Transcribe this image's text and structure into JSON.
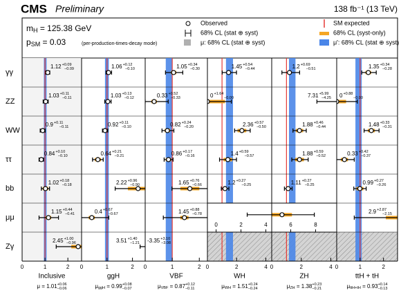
{
  "chart_data": {
    "type": "coefficient-grid",
    "experiment": "CMS",
    "status": "Preliminary",
    "lumi": "138 fb⁻¹ (13 TeV)",
    "mass": {
      "symbol": "m",
      "sub": "H",
      "text": " = 125.38 GeV"
    },
    "psm": {
      "symbol": "p",
      "sub": "SM",
      "text": " = 0.03"
    },
    "psm_note": "(per-production-times-decay mode)",
    "legend": {
      "observed": "Observed",
      "sm": "SM expected",
      "total": "68% CL (stat ⊕ syst)",
      "syst": "68% CL (syst-only)",
      "mu_prime": "μ: 68% CL (stat ⊕ syst)",
      "mu": "μ': 68% CL (stat ⊕ syst)"
    },
    "colors": {
      "point": "#000000",
      "syst": "#f5a623",
      "band": "#4a86e8",
      "sm": "#e53935",
      "mu_prime": "#b0b0b0",
      "shade": "#f3f3f3"
    },
    "eq_sign": " = ",
    "sm": 1,
    "rows": [
      "γγ",
      "ZZ",
      "WW",
      "ττ",
      "bb",
      "μμ",
      "Zγ"
    ],
    "columns": [
      {
        "name": "Inclusive",
        "mu_name": "μ",
        "shade": true,
        "xlim": [
          0,
          2.6
        ],
        "xticks": [
          0,
          1,
          2
        ],
        "mu": {
          "value": 1.01,
          "err_up": 0.06,
          "err_down": 0.06,
          "err_labels": [
            "+0.06",
            "−0.06"
          ]
        },
        "cells": [
          {
            "value": 1.12,
            "err_up": 0.09,
            "err_down": 0.09,
            "err_labels": [
              "+0.09",
              "−0.09"
            ],
            "syst": 0.05
          },
          {
            "value": 1.03,
            "err_up": 0.11,
            "err_down": 0.11,
            "err_labels": [
              "+0.11",
              "−0.11"
            ],
            "syst": 0.05
          },
          {
            "value": 0.9,
            "err_up": 0.11,
            "err_down": 0.11,
            "err_labels": [
              "+0.11",
              "−0.11"
            ],
            "syst": 0.07
          },
          {
            "value": 0.84,
            "err_up": 0.1,
            "err_down": 0.1,
            "err_labels": [
              "+0.10",
              "−0.10"
            ],
            "syst": 0.07
          },
          {
            "value": 1.02,
            "err_up": 0.18,
            "err_down": 0.18,
            "err_labels": [
              "+0.18",
              "−0.18"
            ],
            "syst": 0.12
          },
          {
            "value": 1.15,
            "err_up": 0.44,
            "err_down": 0.41,
            "err_labels": [
              "+0.44",
              "−0.41"
            ],
            "syst": 0.12
          },
          {
            "value": 2.45,
            "err_up": 1.0,
            "err_down": 0.96,
            "err_labels": [
              "+1.00",
              "−0.96"
            ],
            "syst": 0.3
          }
        ]
      },
      {
        "name": "ggH",
        "mu_name": "μ",
        "mu_sub": "ggH",
        "xlim": [
          0,
          2.5
        ],
        "xticks": [
          0,
          1,
          2
        ],
        "mu": {
          "value": 0.99,
          "err_up": 0.08,
          "err_down": 0.07,
          "err_labels": [
            "+0.08",
            "−0.07"
          ]
        },
        "cells": [
          {
            "value": 1.06,
            "err_up": 0.12,
            "err_down": 0.1,
            "err_labels": [
              "+0.12",
              "−0.10"
            ],
            "syst": 0.07
          },
          {
            "value": 1.03,
            "err_up": 0.13,
            "err_down": 0.12,
            "err_labels": [
              "+0.13",
              "−0.12"
            ],
            "syst": 0.06
          },
          {
            "value": 0.92,
            "err_up": 0.11,
            "err_down": 0.1,
            "err_labels": [
              "+0.11",
              "−0.10"
            ],
            "syst": 0.07
          },
          {
            "value": 0.64,
            "err_up": 0.21,
            "err_down": 0.21,
            "err_labels": [
              "+0.21",
              "−0.21"
            ],
            "syst": 0.12
          },
          {
            "value": 2.22,
            "err_up": 0.96,
            "err_down": 0.9,
            "err_labels": [
              "+0.96",
              "−0.90"
            ],
            "syst": 0.4
          },
          {
            "value": 0.4,
            "err_up": 0.67,
            "err_down": 0.67,
            "err_labels": [
              "+0.67",
              "−0.67"
            ],
            "syst": 0.12
          },
          {
            "value": 3.51,
            "err_up": 1.4,
            "err_down": 1.21,
            "err_labels": [
              "+1.40",
              "−1.21"
            ],
            "syst": 0.3
          }
        ]
      },
      {
        "name": "VBF",
        "mu_name": "μ",
        "mu_sub": "VBF",
        "xlim": [
          0,
          2.3
        ],
        "xticks": [
          0,
          1,
          2
        ],
        "mu": {
          "value": 0.87,
          "err_up": 0.12,
          "err_down": 0.11,
          "err_labels": [
            "+0.12",
            "−0.11"
          ]
        },
        "cells": [
          {
            "value": 1.05,
            "err_up": 0.34,
            "err_down": 0.3,
            "err_labels": [
              "+0.34",
              "−0.30"
            ],
            "syst": 0.1
          },
          {
            "value": 0.33,
            "err_up": 0.52,
            "err_down": 0.33,
            "err_labels": [
              "+0.52",
              "−0.33"
            ],
            "syst": 0.1
          },
          {
            "value": 0.82,
            "err_up": 0.24,
            "err_down": 0.2,
            "err_labels": [
              "+0.24",
              "−0.20"
            ],
            "syst": 0.1
          },
          {
            "value": 0.86,
            "err_up": 0.17,
            "err_down": 0.16,
            "err_labels": [
              "+0.17",
              "−0.16"
            ],
            "syst": 0.1
          },
          {
            "value": 1.65,
            "err_up": 0.76,
            "err_down": 0.66,
            "err_labels": [
              "+0.76",
              "−0.66"
            ],
            "syst": 0.35
          },
          {
            "value": 1.45,
            "err_up": 0.88,
            "err_down": 0.78,
            "err_labels": [
              "+0.88",
              "−0.78"
            ],
            "syst": 0.15
          },
          {
            "value": -3.35,
            "err_up": 3.1,
            "err_down": 3.08,
            "err_labels": [
              "+3.10",
              "−3.08"
            ],
            "syst": 0.6
          }
        ]
      },
      {
        "name": "WH",
        "mu_name": "μ",
        "mu_sub": "WH",
        "xlim": [
          0,
          4.4
        ],
        "xticks": [
          0,
          2,
          4
        ],
        "mu": {
          "value": 1.51,
          "err_up": 0.24,
          "err_down": 0.24,
          "err_labels": [
            "+0.24",
            "−0.24"
          ]
        },
        "cells": [
          {
            "value": 1.45,
            "err_up": 0.54,
            "err_down": 0.44,
            "err_labels": [
              "+0.54",
              "−0.44"
            ],
            "syst": 0.15
          },
          {
            "value": 0.0,
            "err_up": 1.64,
            "err_down": 0.0,
            "err_labels": [
              "+1.64",
              "−0.00"
            ],
            "syst": 1.2
          },
          {
            "value": 2.36,
            "err_up": 0.57,
            "err_down": 0.5,
            "err_labels": [
              "+0.57",
              "−0.50"
            ],
            "syst": 0.3
          },
          {
            "value": 1.4,
            "err_up": 0.59,
            "err_down": 0.57,
            "err_labels": [
              "+0.59",
              "−0.57"
            ],
            "syst": 0.3
          },
          {
            "value": 1.2,
            "err_up": 0.27,
            "err_down": 0.25,
            "err_labels": [
              "+0.27",
              "−0.25"
            ],
            "syst": 0.15
          },
          null,
          null
        ]
      },
      {
        "name": "ZH",
        "mu_name": "μ",
        "mu_sub": "ZH",
        "xlim": [
          0,
          4.4
        ],
        "xticks": [
          0,
          2,
          4
        ],
        "mu": {
          "value": 1.38,
          "err_up": 0.23,
          "err_down": 0.21,
          "err_labels": [
            "+0.23",
            "−0.21"
          ]
        },
        "cells": [
          {
            "value": 1.2,
            "err_up": 0.69,
            "err_down": 0.51,
            "err_labels": [
              "+0.69",
              "−0.51"
            ],
            "syst": 0.15
          },
          {
            "value": 7.31,
            "err_up": 5.99,
            "err_down": 4.25,
            "err_labels": [
              "+5.99",
              "−4.25"
            ],
            "syst": 1.5
          },
          {
            "value": 1.88,
            "err_up": 0.46,
            "err_down": 0.44,
            "err_labels": [
              "+0.46",
              "−0.44"
            ],
            "syst": 0.25
          },
          {
            "value": 1.88,
            "err_up": 0.59,
            "err_down": 0.52,
            "err_labels": [
              "+0.59",
              "−0.52"
            ],
            "syst": 0.3
          },
          {
            "value": 1.11,
            "err_up": 0.27,
            "err_down": 0.25,
            "err_labels": [
              "+0.27",
              "−0.25"
            ],
            "syst": 0.15
          },
          null,
          null
        ]
      },
      {
        "name": "ttH + tH",
        "mu_name": "μ",
        "mu_sub": "ttH+tH",
        "xlim": [
          0,
          2.6
        ],
        "xticks": [
          0,
          1,
          2
        ],
        "mu": {
          "value": 0.93,
          "err_up": 0.14,
          "err_down": 0.13,
          "err_labels": [
            "+0.14",
            "−0.13"
          ]
        },
        "cells": [
          {
            "value": 1.35,
            "err_up": 0.34,
            "err_down": 0.28,
            "err_labels": [
              "+0.34",
              "−0.28"
            ],
            "syst": 0.12
          },
          {
            "value": 0.0,
            "err_up": 0.88,
            "err_down": 0.0,
            "err_labels": [
              "+0.88",
              "−0.00"
            ],
            "syst": 0.4
          },
          {
            "value": 1.48,
            "err_up": 0.33,
            "err_down": 0.31,
            "err_labels": [
              "+0.33",
              "−0.31"
            ],
            "syst": 0.15
          },
          {
            "value": 0.33,
            "err_up": 0.42,
            "err_down": 0.37,
            "err_labels": [
              "+0.42",
              "−0.37"
            ],
            "syst": 0.15
          },
          {
            "value": 0.99,
            "err_up": 0.27,
            "err_down": 0.26,
            "err_labels": [
              "+0.27",
              "−0.26"
            ],
            "syst": 0.15
          },
          {
            "value": 2.9,
            "err_up": 2.87,
            "err_down": 2.15,
            "err_labels": [
              "+2.87",
              "−2.15"
            ],
            "syst": 0.8
          },
          null
        ]
      }
    ],
    "vh_mumu": {
      "xlim": [
        -0.7,
        9.7
      ],
      "xticks": [
        0,
        2,
        4,
        6,
        8
      ],
      "value": 5.3,
      "err_up": 2.6,
      "err_down": 2.8,
      "syst": 0.8
    }
  }
}
